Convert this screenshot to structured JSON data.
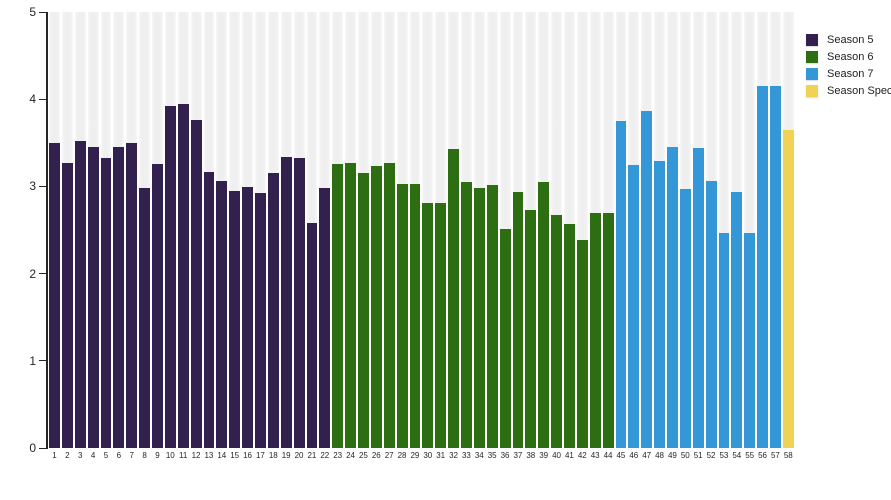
{
  "chart_data": {
    "type": "bar",
    "title": "",
    "xlabel": "",
    "ylabel": "",
    "ylim": [
      0,
      5
    ],
    "y_ticks": [
      0,
      1,
      2,
      3,
      4,
      5
    ],
    "grid": "vertical-stripe-bands",
    "legend_position": "top-right-outside",
    "colors": {
      "background": "#ffffff",
      "track_band": "#efefef",
      "axis": "#262626",
      "season5": "#32204e",
      "season6": "#2e6e12",
      "season7": "#3498d8",
      "special": "#f0d355"
    },
    "series": [
      {
        "name": "Season 5",
        "color": "#32204e",
        "episodes": [
          1,
          2,
          3,
          4,
          5,
          6,
          7,
          8,
          9,
          10,
          11,
          12,
          13,
          14,
          15,
          16,
          17,
          18,
          19,
          20,
          21,
          22
        ],
        "values": [
          3.5,
          3.27,
          3.52,
          3.45,
          3.33,
          3.45,
          3.5,
          2.98,
          3.26,
          3.92,
          3.94,
          3.76,
          3.17,
          3.06,
          2.95,
          2.99,
          2.92,
          3.15,
          3.34,
          3.33,
          2.58,
          2.98
        ]
      },
      {
        "name": "Season 6",
        "color": "#2e6e12",
        "episodes": [
          23,
          24,
          25,
          26,
          27,
          28,
          29,
          30,
          31,
          32,
          33,
          34,
          35,
          36,
          37,
          38,
          39,
          40,
          41,
          42,
          43,
          44
        ],
        "values": [
          3.26,
          3.27,
          3.15,
          3.23,
          3.27,
          3.03,
          3.03,
          2.81,
          2.81,
          3.43,
          3.05,
          2.98,
          3.02,
          2.51,
          2.94,
          2.73,
          3.05,
          2.67,
          2.57,
          2.39,
          2.69,
          2.7
        ]
      },
      {
        "name": "Season 7",
        "color": "#3498d8",
        "episodes": [
          45,
          46,
          47,
          48,
          49,
          50,
          51,
          52,
          53,
          54,
          55,
          56,
          57
        ],
        "values": [
          3.75,
          3.25,
          3.87,
          3.29,
          3.45,
          2.97,
          3.44,
          3.06,
          2.47,
          2.94,
          2.47,
          4.15,
          4.15
        ]
      },
      {
        "name": "Season Special",
        "color": "#f0d355",
        "episodes": [
          58
        ],
        "values": [
          3.65
        ]
      }
    ],
    "legend": [
      {
        "label": "Season 5",
        "color": "#32204e"
      },
      {
        "label": "Season 6",
        "color": "#2e6e12"
      },
      {
        "label": "Season 7",
        "color": "#3498d8"
      },
      {
        "label": "Season Special",
        "color": "#f0d355"
      }
    ]
  }
}
